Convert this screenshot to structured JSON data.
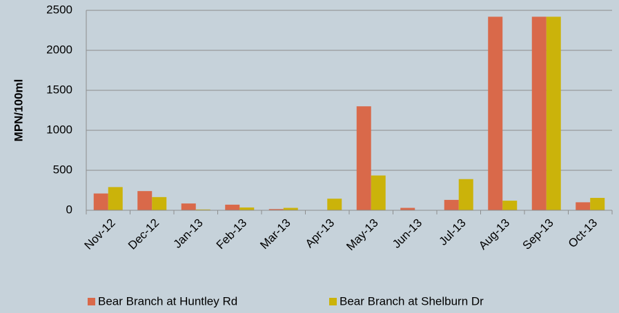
{
  "chart_data": {
    "type": "bar",
    "y_label": "MPN/100ml",
    "categories": [
      "Nov-12",
      "Dec-12",
      "Jan-13",
      "Feb-13",
      "Mar-13",
      "Apr-13",
      "May-13",
      "Jun-13",
      "Jul-13",
      "Aug-13",
      "Sep-13",
      "Oct-13"
    ],
    "series": [
      {
        "name": "Bear Branch at Huntley Rd",
        "color": "#d9694a",
        "values": [
          210,
          240,
          85,
          70,
          15,
          0,
          1300,
          30,
          130,
          2420,
          2420,
          100
        ]
      },
      {
        "name": "Bear Branch at Shelburn Dr",
        "color": "#cbb30a",
        "values": [
          290,
          165,
          10,
          35,
          30,
          145,
          435,
          0,
          390,
          120,
          2420,
          155
        ]
      }
    ],
    "ylim": [
      0,
      2500
    ],
    "yticks": [
      0,
      500,
      1000,
      1500,
      2000,
      2500
    ],
    "grid": true,
    "legend": "bottom"
  }
}
